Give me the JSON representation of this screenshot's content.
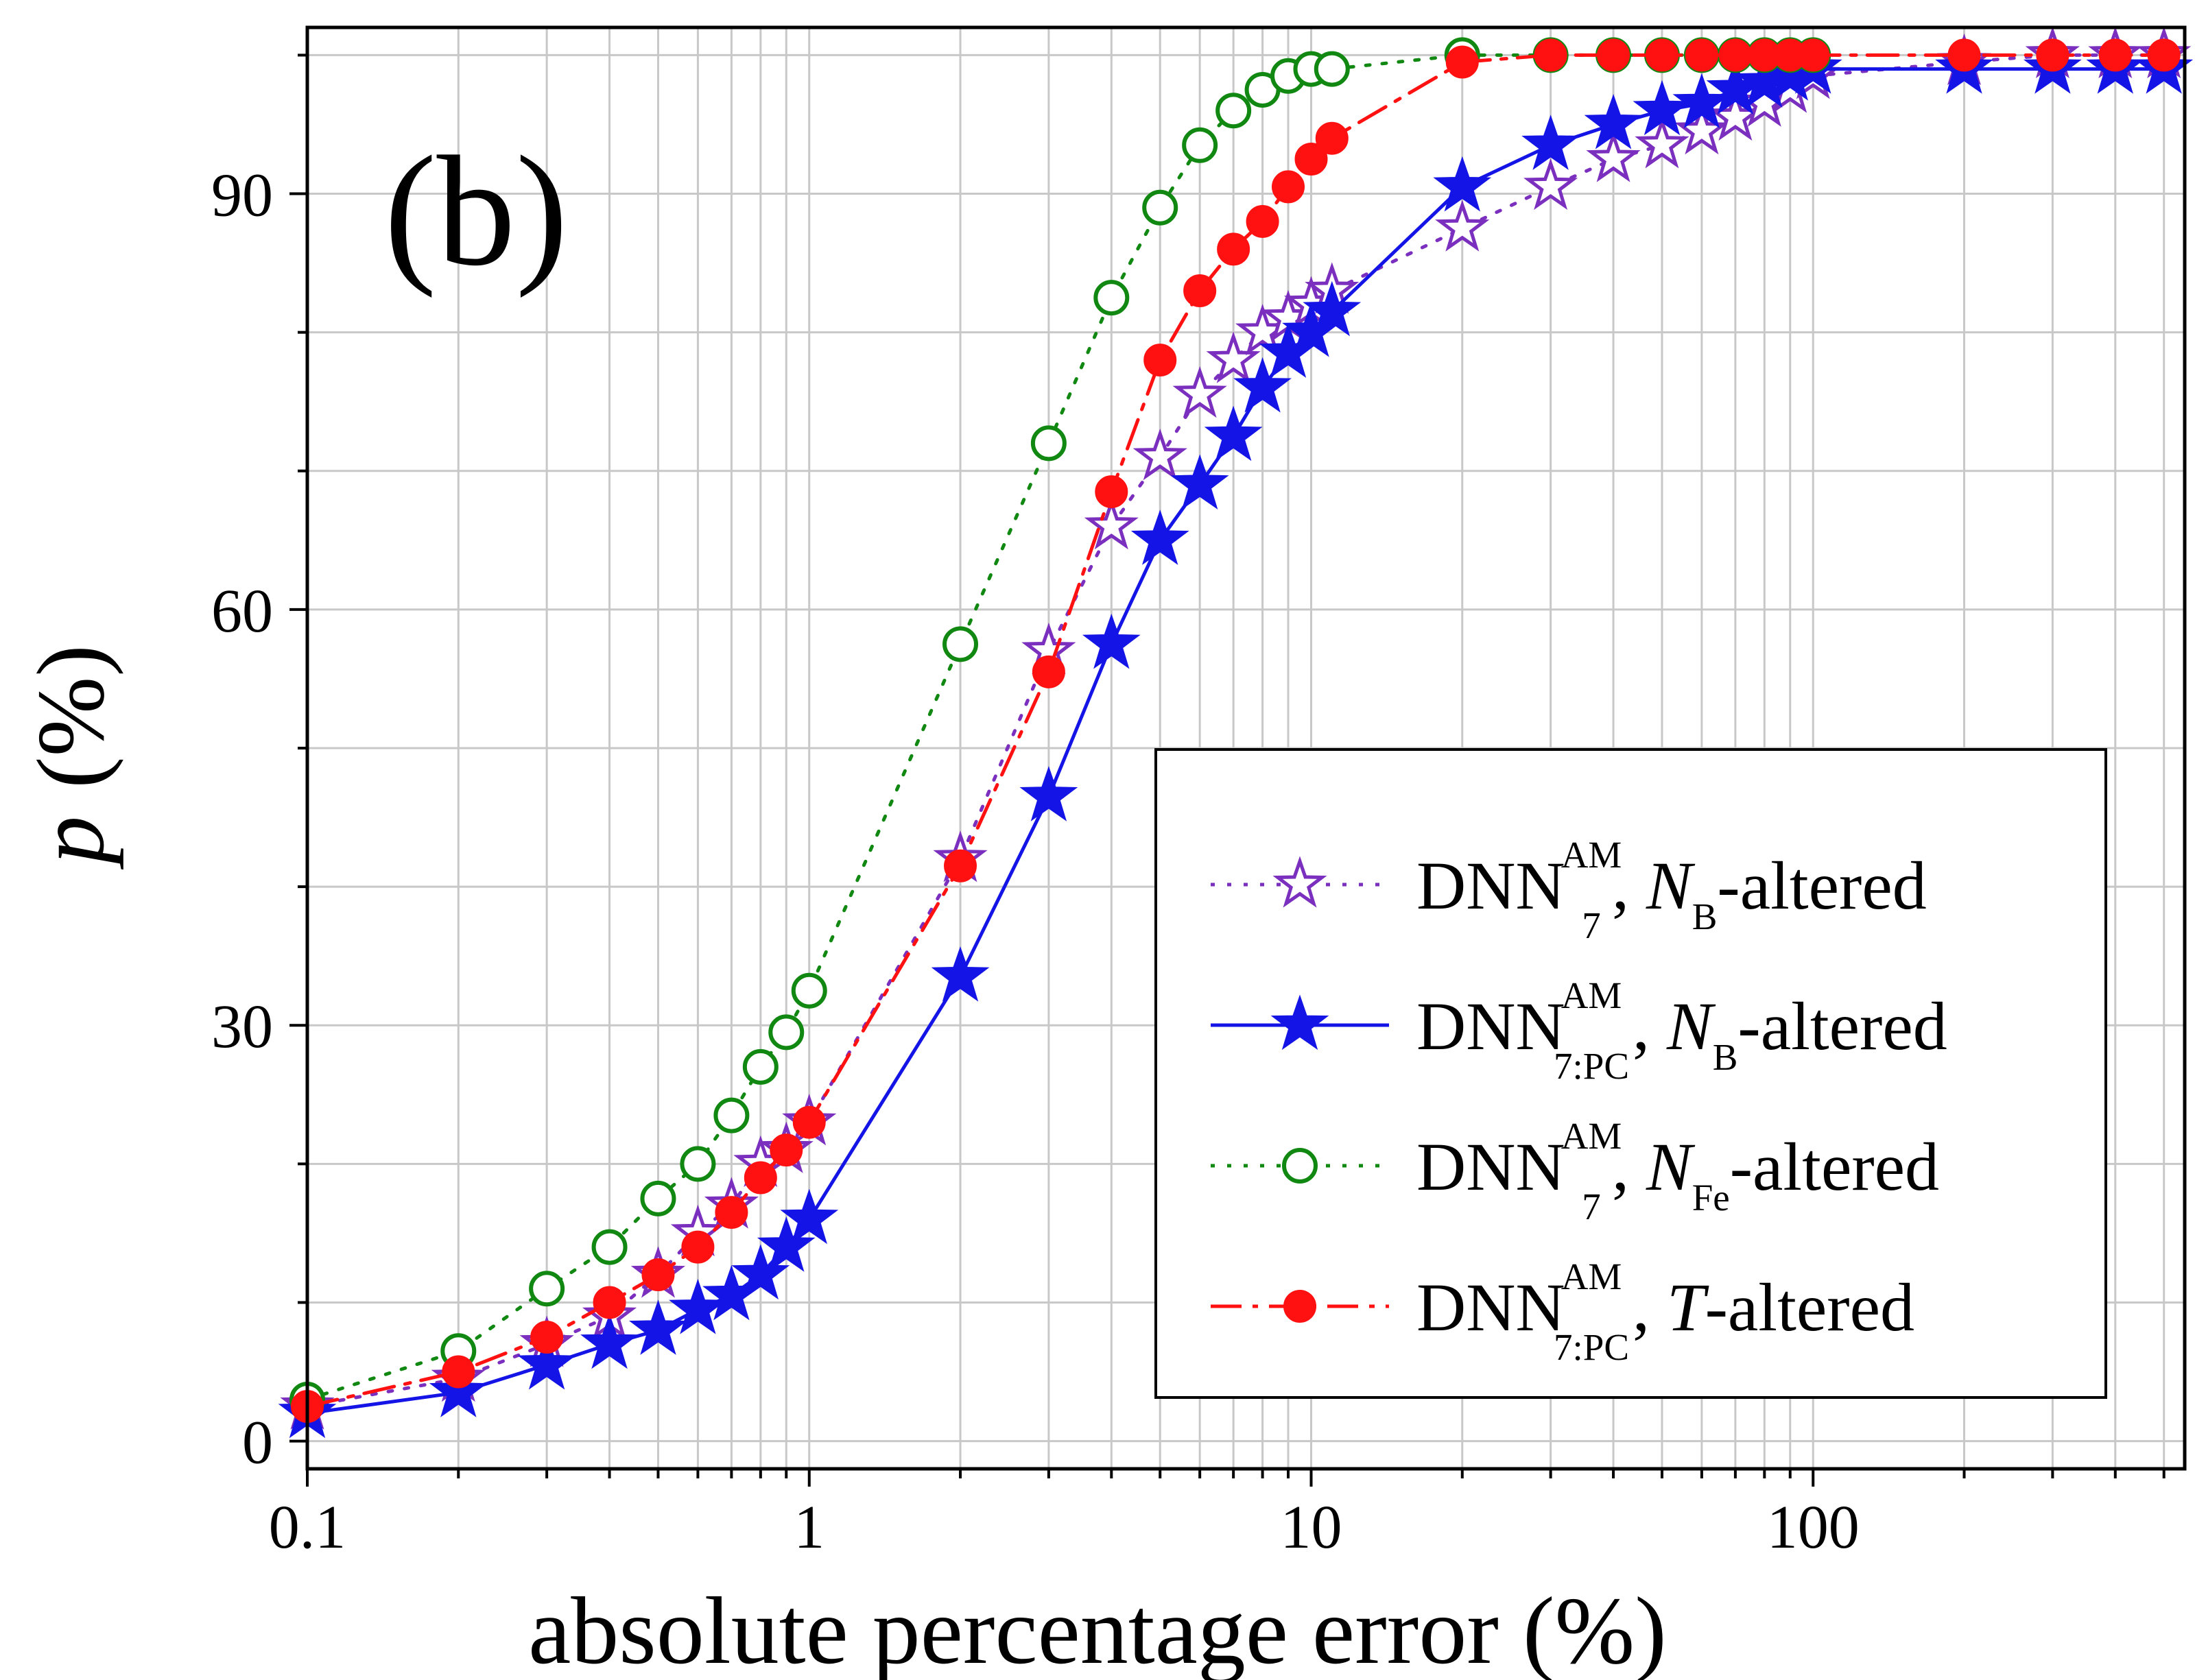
{
  "chart_data": {
    "type": "line",
    "panel_label": "(b)",
    "xlabel": "absolute percentage error (%)",
    "ylabel": {
      "symbol": "p",
      "unit": "(%)"
    },
    "x_scale": "log",
    "xlim": [
      0.1,
      550
    ],
    "ylim": [
      -2,
      102
    ],
    "x_ticks": [
      0.1,
      1,
      10,
      100
    ],
    "x_tick_labels": [
      "0.1",
      "1",
      "10",
      "100"
    ],
    "y_ticks": [
      0,
      30,
      60,
      90
    ],
    "y_tick_labels": [
      "0",
      "30",
      "60",
      "90"
    ],
    "grid": true,
    "legend_position": "lower-right",
    "series": [
      {
        "key": "s1",
        "legend": {
          "base": "DNN",
          "sup": "AM",
          "sub": "7",
          "var": "N",
          "var_sub": "B",
          "suffix": "-altered"
        },
        "color": "#7b2fbe",
        "marker": "star-open",
        "line_style": "dotted",
        "x": [
          0.1,
          0.2,
          0.3,
          0.4,
          0.5,
          0.6,
          0.7,
          0.8,
          0.9,
          1,
          2,
          3,
          4,
          5,
          6,
          7,
          8,
          9,
          10,
          11,
          20,
          30,
          40,
          50,
          60,
          70,
          80,
          90,
          100,
          200,
          300,
          400,
          500
        ],
        "y": [
          2.5,
          4.5,
          7,
          9,
          12,
          15,
          17,
          20,
          21,
          23,
          42,
          57,
          66,
          71,
          75.5,
          78,
          80,
          81,
          82,
          83,
          87.5,
          90.5,
          92.5,
          93.5,
          94.5,
          95.5,
          96.5,
          97.5,
          98.5,
          99.5,
          100,
          100,
          100
        ]
      },
      {
        "key": "s2",
        "legend": {
          "base": "DNN",
          "sup": "AM",
          "sub": "7:PC",
          "var": "N",
          "var_sub": "B",
          "suffix": "-altered"
        },
        "color": "#1414e6",
        "marker": "star-filled",
        "line_style": "solid",
        "x": [
          0.1,
          0.2,
          0.3,
          0.4,
          0.5,
          0.6,
          0.7,
          0.8,
          0.9,
          1,
          2,
          3,
          4,
          5,
          6,
          7,
          8,
          9,
          10,
          11,
          20,
          30,
          40,
          50,
          60,
          70,
          80,
          90,
          100,
          200,
          300,
          400,
          500
        ],
        "y": [
          2,
          3.5,
          5.5,
          7,
          8,
          9.5,
          10.5,
          12,
          14,
          16,
          33.5,
          46.5,
          57.5,
          65,
          69,
          72.5,
          76,
          78.5,
          80,
          81.5,
          90.5,
          93.5,
          95,
          96,
          96.5,
          97.5,
          98,
          98.5,
          99,
          99,
          99,
          99,
          99
        ]
      },
      {
        "key": "s3",
        "legend": {
          "base": "DNN",
          "sup": "AM",
          "sub": "7",
          "var": "N",
          "var_sub": "Fe",
          "suffix": "-altered"
        },
        "color": "#118811",
        "marker": "circle-open",
        "line_style": "dotted",
        "x": [
          0.1,
          0.2,
          0.3,
          0.4,
          0.5,
          0.6,
          0.7,
          0.8,
          0.9,
          1,
          2,
          3,
          4,
          5,
          6,
          7,
          8,
          9,
          10,
          11,
          20,
          30,
          40,
          50,
          60,
          70,
          80,
          90,
          100
        ],
        "y": [
          3,
          6.5,
          11,
          14,
          17.5,
          20,
          23.5,
          27,
          29.5,
          32.5,
          57.5,
          72,
          82.5,
          89,
          93.5,
          96,
          97.5,
          98.5,
          99,
          99,
          100,
          100,
          100,
          100,
          100,
          100,
          100,
          100,
          100
        ]
      },
      {
        "key": "s4",
        "legend": {
          "base": "DNN",
          "sup": "AM",
          "sub": "7:PC",
          "var": "T",
          "var_sub": "",
          "suffix": "-altered"
        },
        "color": "#ff1111",
        "marker": "circle-filled",
        "line_style": "dashdot",
        "x": [
          0.1,
          0.2,
          0.3,
          0.4,
          0.5,
          0.6,
          0.7,
          0.8,
          0.9,
          1,
          2,
          3,
          4,
          5,
          6,
          7,
          8,
          9,
          10,
          11,
          20,
          30,
          40,
          50,
          60,
          70,
          80,
          90,
          100,
          200,
          300,
          400,
          500
        ],
        "y": [
          2.5,
          5,
          7.5,
          10,
          12,
          14,
          16.5,
          19,
          21,
          23,
          41.5,
          55.5,
          68.5,
          78,
          83,
          86,
          88,
          90.5,
          92.5,
          94,
          99.5,
          100,
          100,
          100,
          100,
          100,
          100,
          100,
          100,
          100,
          100,
          100,
          100
        ]
      }
    ]
  }
}
